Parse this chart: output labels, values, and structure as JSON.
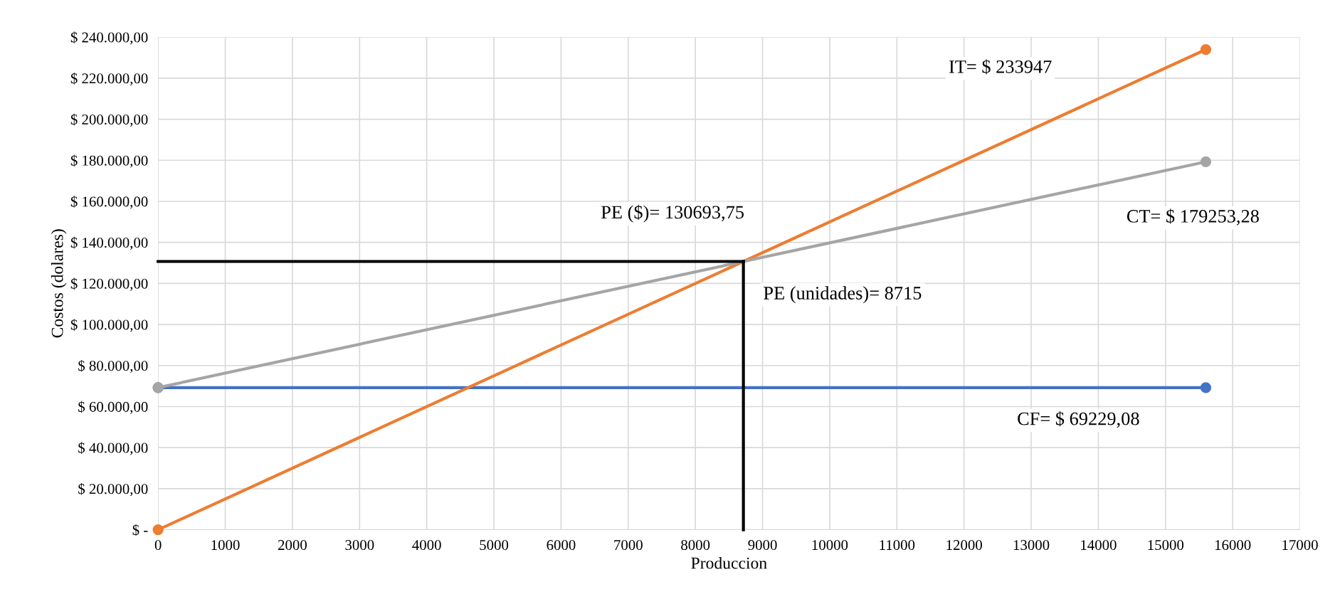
{
  "chart_data": {
    "type": "line",
    "xlabel": "Produccion",
    "ylabel": "Costos (dolares)",
    "xlim": [
      0,
      17000
    ],
    "xticks": [
      0,
      1000,
      2000,
      3000,
      4000,
      5000,
      6000,
      7000,
      8000,
      9000,
      10000,
      11000,
      12000,
      13000,
      14000,
      15000,
      16000,
      17000
    ],
    "ylim": [
      0,
      240000
    ],
    "yticks": [
      {
        "value": 0,
        "label": "$ -"
      },
      {
        "value": 20000,
        "label": "$ 20.000,00"
      },
      {
        "value": 40000,
        "label": "$ 40.000,00"
      },
      {
        "value": 60000,
        "label": "$ 60.000,00"
      },
      {
        "value": 80000,
        "label": "$ 80.000,00"
      },
      {
        "value": 100000,
        "label": "$ 100.000,00"
      },
      {
        "value": 120000,
        "label": "$ 120.000,00"
      },
      {
        "value": 140000,
        "label": "$ 140.000,00"
      },
      {
        "value": 160000,
        "label": "$ 160.000,00"
      },
      {
        "value": 180000,
        "label": "$ 180.000,00"
      },
      {
        "value": 200000,
        "label": "$ 200.000,00"
      },
      {
        "value": 220000,
        "label": "$ 220.000,00"
      },
      {
        "value": 240000,
        "label": "$ 240.000,00"
      }
    ],
    "grid": true,
    "legend": false,
    "series": [
      {
        "color": "#4472c4",
        "x": [
          0,
          15600
        ],
        "values": [
          69229.08,
          69229.08
        ],
        "marker": "circle"
      },
      {
        "color": "#ed7d31",
        "x": [
          0,
          15600
        ],
        "values": [
          0,
          233947
        ],
        "marker": "circle"
      },
      {
        "color": "#a5a5a5",
        "x": [
          0,
          15600
        ],
        "values": [
          69229.08,
          179253.28
        ],
        "marker": "circle"
      },
      {
        "color": "#000000",
        "x": [
          0,
          8715
        ],
        "values": [
          130693.75,
          130693.75
        ],
        "marker": "none"
      },
      {
        "color": "#000000",
        "x": [
          8715,
          8715
        ],
        "values": [
          130693.75,
          0
        ],
        "marker": "none"
      }
    ],
    "annotations": [
      "IT= $ 233947",
      "PE ($)= 130693,75",
      "CT= $ 179253,28",
      "PE (unidades)= 8715",
      "CF= $ 69229,08"
    ]
  }
}
